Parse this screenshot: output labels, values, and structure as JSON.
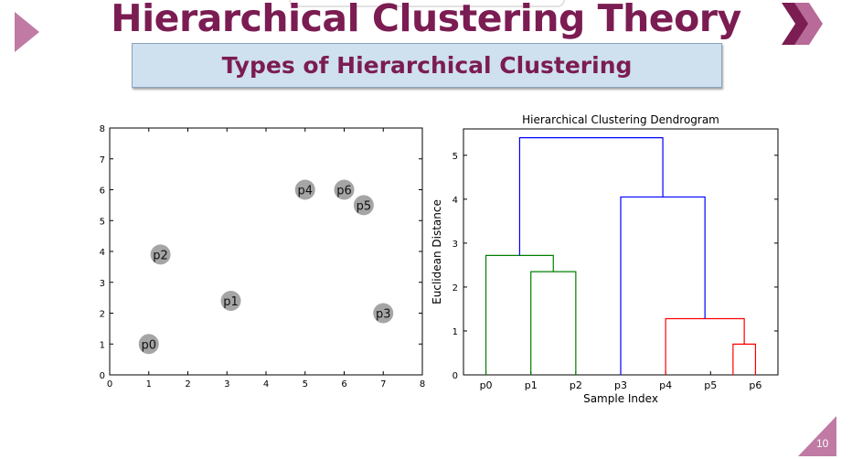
{
  "slide": {
    "title": "Hierarchical Clustering Theory",
    "subtitle": "Types of Hierarchical Clustering",
    "page_number": "10",
    "accent_color": "#7b1c52",
    "decor_color": "#b86a98",
    "left_icon": "play-triangle-icon",
    "right_icon": "chevron-arrows-icon"
  },
  "chart_data": [
    {
      "type": "scatter",
      "title": "",
      "xlabel": "",
      "ylabel": "",
      "xlim": [
        0,
        8
      ],
      "ylim": [
        0,
        8
      ],
      "xticks": [
        "0",
        "1",
        "2",
        "3",
        "4",
        "5",
        "6",
        "7",
        "8"
      ],
      "yticks": [
        "0",
        "1",
        "2",
        "3",
        "4",
        "5",
        "6",
        "7",
        "8"
      ],
      "grid": false,
      "point_color": "#8f8f8f",
      "points": [
        {
          "label": "p0",
          "x": 1.0,
          "y": 1.0
        },
        {
          "label": "p1",
          "x": 3.1,
          "y": 2.4
        },
        {
          "label": "p2",
          "x": 1.3,
          "y": 3.9
        },
        {
          "label": "p3",
          "x": 7.0,
          "y": 2.0
        },
        {
          "label": "p4",
          "x": 5.0,
          "y": 6.0
        },
        {
          "label": "p5",
          "x": 6.5,
          "y": 5.5
        },
        {
          "label": "p6",
          "x": 6.0,
          "y": 6.0
        }
      ]
    },
    {
      "type": "dendrogram",
      "title": "Hierarchical Clustering Dendrogram",
      "xlabel": "Sample Index",
      "ylabel": "Euclidean Distance",
      "categories": [
        "p0",
        "p1",
        "p2",
        "p3",
        "p4",
        "p5",
        "p6"
      ],
      "ylim": [
        0,
        5.6
      ],
      "yticks": [
        "0",
        "1",
        "2",
        "3",
        "4",
        "5"
      ],
      "grid": false,
      "links": [
        {
          "left": 5.5,
          "right": 6,
          "left_height": 0,
          "right_height": 0,
          "height": 0.7,
          "color": "#ff0000"
        },
        {
          "left": 4,
          "right": 5.75,
          "left_height": 0,
          "right_height": 0.7,
          "height": 1.28,
          "color": "#ff0000"
        },
        {
          "left": 1,
          "right": 2,
          "left_height": 0,
          "right_height": 0,
          "height": 2.35,
          "color": "#008000"
        },
        {
          "left": 0,
          "right": 1.5,
          "left_height": 0,
          "right_height": 2.35,
          "height": 2.72,
          "color": "#008000"
        },
        {
          "left": 3,
          "right": 4.875,
          "left_height": 0,
          "right_height": 1.28,
          "height": 4.05,
          "color": "#0000ff"
        },
        {
          "left": 0.75,
          "right": 3.9375,
          "left_height": 2.72,
          "right_height": 4.05,
          "height": 5.4,
          "color": "#0000ff"
        }
      ]
    }
  ]
}
